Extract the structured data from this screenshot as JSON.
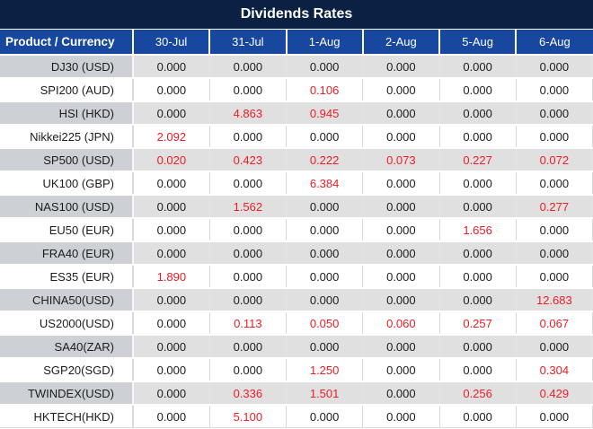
{
  "title": "Dividends Rates",
  "colors": {
    "title_bg": "#0a2143",
    "header_bg": "#1847a0",
    "alt_row_product_bg": "#cdd0d5",
    "alt_row_value_bg": "#e0e0e0",
    "highlight_red": "#ee1c25",
    "text": "#1c1c1c",
    "divider": "#d9d9d9"
  },
  "table": {
    "product_header": "Product / Currency",
    "date_headers": [
      "30-Jul",
      "31-Jul",
      "1-Aug",
      "2-Aug",
      "5-Aug",
      "6-Aug"
    ],
    "rows": [
      {
        "product": "DJ30 (USD)",
        "values": [
          "0.000",
          "0.000",
          "0.000",
          "0.000",
          "0.000",
          "0.000"
        ],
        "red": [
          false,
          false,
          false,
          false,
          false,
          false
        ]
      },
      {
        "product": "SPI200 (AUD)",
        "values": [
          "0.000",
          "0.000",
          "0.106",
          "0.000",
          "0.000",
          "0.000"
        ],
        "red": [
          false,
          false,
          true,
          false,
          false,
          false
        ]
      },
      {
        "product": "HSI (HKD)",
        "values": [
          "0.000",
          "4.863",
          "0.945",
          "0.000",
          "0.000",
          "0.000"
        ],
        "red": [
          false,
          true,
          true,
          false,
          false,
          false
        ]
      },
      {
        "product": "Nikkei225 (JPN)",
        "values": [
          "2.092",
          "0.000",
          "0.000",
          "0.000",
          "0.000",
          "0.000"
        ],
        "red": [
          true,
          false,
          false,
          false,
          false,
          false
        ]
      },
      {
        "product": "SP500 (USD)",
        "values": [
          "0.020",
          "0.423",
          "0.222",
          "0.073",
          "0.227",
          "0.072"
        ],
        "red": [
          true,
          true,
          true,
          true,
          true,
          true
        ]
      },
      {
        "product": "UK100 (GBP)",
        "values": [
          "0.000",
          "0.000",
          "6.384",
          "0.000",
          "0.000",
          "0.000"
        ],
        "red": [
          false,
          false,
          true,
          false,
          false,
          false
        ]
      },
      {
        "product": "NAS100 (USD)",
        "values": [
          "0.000",
          "1.562",
          "0.000",
          "0.000",
          "0.000",
          "0.277"
        ],
        "red": [
          false,
          true,
          false,
          false,
          false,
          true
        ]
      },
      {
        "product": "EU50 (EUR)",
        "values": [
          "0.000",
          "0.000",
          "0.000",
          "0.000",
          "1.656",
          "0.000"
        ],
        "red": [
          false,
          false,
          false,
          false,
          true,
          false
        ]
      },
      {
        "product": "FRA40 (EUR)",
        "values": [
          "0.000",
          "0.000",
          "0.000",
          "0.000",
          "0.000",
          "0.000"
        ],
        "red": [
          false,
          false,
          false,
          false,
          false,
          false
        ]
      },
      {
        "product": "ES35 (EUR)",
        "values": [
          "1.890",
          "0.000",
          "0.000",
          "0.000",
          "0.000",
          "0.000"
        ],
        "red": [
          true,
          false,
          false,
          false,
          false,
          false
        ]
      },
      {
        "product": "CHINA50(USD)",
        "values": [
          "0.000",
          "0.000",
          "0.000",
          "0.000",
          "0.000",
          "12.683"
        ],
        "red": [
          false,
          false,
          false,
          false,
          false,
          true
        ]
      },
      {
        "product": "US2000(USD)",
        "values": [
          "0.000",
          "0.113",
          "0.050",
          "0.060",
          "0.257",
          "0.067"
        ],
        "red": [
          false,
          true,
          true,
          true,
          true,
          true
        ]
      },
      {
        "product": "SA40(ZAR)",
        "values": [
          "0.000",
          "0.000",
          "0.000",
          "0.000",
          "0.000",
          "0.000"
        ],
        "red": [
          false,
          false,
          false,
          false,
          false,
          false
        ]
      },
      {
        "product": "SGP20(SGD)",
        "values": [
          "0.000",
          "0.000",
          "1.250",
          "0.000",
          "0.000",
          "0.304"
        ],
        "red": [
          false,
          false,
          true,
          false,
          false,
          true
        ]
      },
      {
        "product": "TWINDEX(USD)",
        "values": [
          "0.000",
          "0.336",
          "1.501",
          "0.000",
          "0.256",
          "0.429"
        ],
        "red": [
          false,
          true,
          true,
          false,
          true,
          true
        ]
      },
      {
        "product": "HKTECH(HKD)",
        "values": [
          "0.000",
          "5.100",
          "0.000",
          "0.000",
          "0.000",
          "0.000"
        ],
        "red": [
          false,
          true,
          false,
          false,
          false,
          false
        ]
      }
    ]
  }
}
